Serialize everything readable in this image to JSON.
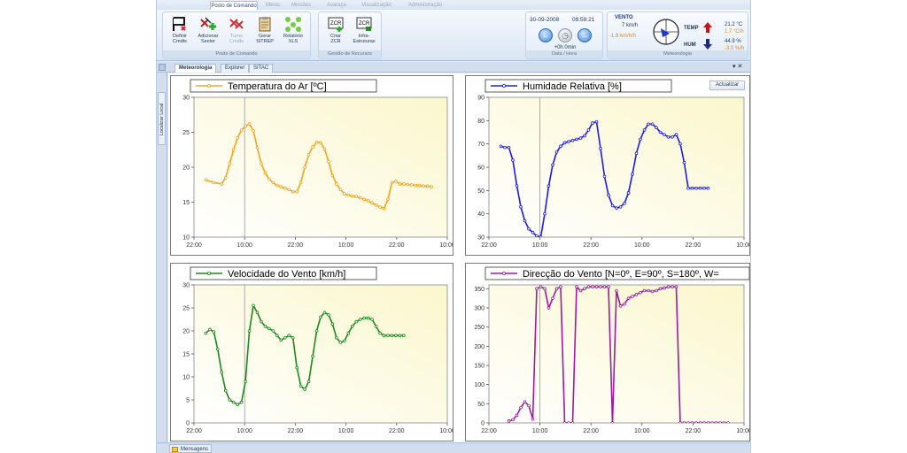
{
  "ribbon": {
    "tabs": [
      "Posto de Comando",
      "Meios",
      "Missões",
      "Avaraça",
      "Visualização",
      "Administração"
    ],
    "groups": {
      "posto": {
        "label": "Posto de Comando",
        "buttons": [
          {
            "label": "Definir\nCmdts",
            "icon": "flag-define-icon"
          },
          {
            "label": "Adicionar\nSector",
            "icon": "add-sector-icon"
          },
          {
            "label": "Turno\nCmdts",
            "icon": "shift-commanders-icon",
            "disabled": true
          },
          {
            "label": "Gerar\nSITREP",
            "icon": "clipboard-report-icon"
          },
          {
            "label": "Relatório\nXLS",
            "icon": "network-report-icon"
          }
        ]
      },
      "gestao": {
        "label": "Gestão de Recursos",
        "buttons": [
          {
            "label": "Criar\nZCR",
            "icon": "zcr-create-icon"
          },
          {
            "label": "Infra-\nEstruturas",
            "icon": "zcr-infrastructure-icon"
          }
        ]
      },
      "datahora": {
        "label": "Data / Hora",
        "date": "30-09-2008",
        "time": "09:59:21",
        "offset": "+0h 0min"
      },
      "meteo": {
        "label": "Meteorologia",
        "wind_title": "VENTO",
        "wind_speed": "7 km/h",
        "wind_trend": "-1.8 km/h/h",
        "temp_label": "TEMP",
        "temp_value": "21.2 °C",
        "temp_trend": "1.7 °C/h",
        "hum_label": "HUM",
        "hum_value": "44.9 %",
        "hum_trend": "-3.0 %/h"
      }
    }
  },
  "doc_tabs": [
    "Meteorologia",
    "Explorer",
    "SITAC"
  ],
  "side_tab": "Localizar Local",
  "status_tab": "Mensagens",
  "actualizar_label": "Actualizar",
  "panels": {
    "temp": {
      "title": "Temperatura do Ar [ºC]"
    },
    "hum": {
      "title": "Humidade Relativa [%]"
    },
    "wind": {
      "title": "Velocidade do Vento [km/h]"
    },
    "dir": {
      "title": "Direcção do Vento [N=0º, E=90º, S=180º, W="
    }
  },
  "chart_data": [
    {
      "type": "line",
      "title": "Temperatura do Ar [ºC]",
      "color": "#f5a31a",
      "x_ticks": [
        "22:00",
        "10:00",
        "22:00",
        "10:00",
        "22:00",
        "10:00"
      ],
      "ylim": [
        10,
        30
      ],
      "y_ticks": [
        10,
        15,
        20,
        25,
        30
      ],
      "grid": false,
      "x": [
        3,
        5,
        7,
        8,
        9,
        10,
        11,
        12,
        13,
        14,
        15,
        16,
        17,
        18,
        19,
        20,
        21,
        22,
        23,
        24,
        25,
        26,
        27,
        28,
        29,
        30,
        31,
        32,
        33,
        34,
        35,
        36,
        37,
        38,
        39,
        40,
        41,
        42,
        43,
        44,
        45,
        46,
        47,
        48,
        49,
        50,
        51,
        52,
        53,
        54,
        55,
        56,
        57,
        58,
        59,
        60
      ],
      "values": [
        18.2,
        17.8,
        17.6,
        18.5,
        20.5,
        22.5,
        24.2,
        25.3,
        25.9,
        26.2,
        25.2,
        22.8,
        20.5,
        19.2,
        18.3,
        17.8,
        17.4,
        17.2,
        17.0,
        16.8,
        16.5,
        16.5,
        17.8,
        20.0,
        21.8,
        22.9,
        23.6,
        23.5,
        22.6,
        20.8,
        18.8,
        17.6,
        16.8,
        16.2,
        16.0,
        15.9,
        15.8,
        15.6,
        15.4,
        15.2,
        14.9,
        14.6,
        14.3,
        14.1,
        15.4,
        17.8,
        18.0,
        17.6,
        17.6,
        17.5,
        17.5,
        17.4,
        17.4,
        17.3,
        17.3,
        17.2
      ]
    },
    {
      "type": "line",
      "title": "Humidade Relativa [%]",
      "color": "#1a1af5",
      "x_ticks": [
        "22:00",
        "10:00",
        "22:00",
        "10:00",
        "22:00",
        "10:00"
      ],
      "ylim": [
        30,
        90
      ],
      "y_ticks": [
        30,
        40,
        50,
        60,
        70,
        80,
        90
      ],
      "grid": false,
      "x": [
        3,
        4,
        5,
        6,
        7,
        8,
        9,
        10,
        11,
        12,
        13,
        14,
        15,
        16,
        17,
        18,
        19,
        20,
        21,
        22,
        23,
        24,
        25,
        26,
        27,
        28,
        29,
        30,
        31,
        32,
        33,
        34,
        35,
        36,
        37,
        38,
        39,
        40,
        41,
        42,
        43,
        44,
        45,
        46,
        47,
        48,
        49,
        50,
        51,
        52,
        53,
        54,
        55
      ],
      "values": [
        69,
        68.5,
        68.5,
        63,
        52,
        43,
        37,
        33.5,
        32,
        30.5,
        30,
        40,
        52,
        61,
        66.5,
        69,
        70.5,
        71,
        71.5,
        72,
        72.5,
        73.5,
        76,
        79,
        79.5,
        68,
        56,
        48,
        43.5,
        42.5,
        43,
        44.5,
        49,
        57,
        66,
        72,
        76,
        78.5,
        78.5,
        77,
        75,
        74,
        73,
        73,
        74,
        70,
        62,
        51,
        51,
        51,
        51,
        51,
        51
      ]
    },
    {
      "type": "line",
      "title": "Velocidade do Vento [km/h]",
      "color": "#1a8a1a",
      "x_ticks": [
        "22:00",
        "10:00",
        "22:00",
        "10:00",
        "22:00",
        "10:00"
      ],
      "ylim": [
        0,
        30
      ],
      "y_ticks": [
        0,
        5,
        10,
        15,
        20,
        25,
        30
      ],
      "grid": false,
      "x": [
        3,
        4,
        5,
        6,
        7,
        8,
        9,
        10,
        11,
        12,
        13,
        14,
        15,
        16,
        17,
        18,
        19,
        20,
        21,
        22,
        23,
        24,
        25,
        26,
        27,
        28,
        29,
        30,
        31,
        32,
        33,
        34,
        35,
        36,
        37,
        38,
        39,
        40,
        41,
        42,
        43,
        44,
        45,
        46,
        47,
        48,
        49,
        50,
        51,
        52,
        53
      ],
      "values": [
        19.5,
        20.3,
        19.8,
        16,
        11,
        7,
        5,
        4.5,
        4,
        4.5,
        9,
        20,
        25.5,
        24,
        22,
        21,
        20.5,
        20,
        19,
        18,
        18.5,
        19,
        18.5,
        12,
        8,
        7.3,
        9,
        14.5,
        20,
        23,
        24,
        23.5,
        21.5,
        18.5,
        17.5,
        17.8,
        19.5,
        21,
        22,
        22.5,
        22.8,
        22.8,
        22.5,
        21,
        19.5,
        19,
        19,
        19,
        19,
        19,
        19
      ]
    },
    {
      "type": "line",
      "title": "Direcção do Vento [N=0º, E=90º, S=180º, W=",
      "color": "#a01aa0",
      "x_ticks": [
        "22:00",
        "10:00",
        "22:00",
        "10:00",
        "22:00",
        "10:00"
      ],
      "ylim": [
        0,
        360
      ],
      "y_ticks": [
        0,
        50,
        100,
        150,
        200,
        250,
        300,
        350
      ],
      "grid": false,
      "x": [
        5,
        6,
        7,
        8,
        9,
        10,
        11,
        12,
        13,
        14,
        15,
        16,
        17,
        18,
        19,
        20,
        21,
        22,
        23,
        24,
        25,
        26,
        27,
        28,
        29,
        30,
        31,
        32,
        33,
        34,
        35,
        36,
        37,
        38,
        39,
        40,
        41,
        42,
        43,
        44,
        45,
        46,
        47,
        48,
        49,
        50,
        51,
        52,
        53,
        54,
        55,
        56,
        57,
        58,
        59,
        60
      ],
      "values": [
        5,
        8,
        20,
        40,
        55,
        45,
        10,
        350,
        355,
        350,
        300,
        325,
        350,
        355,
        0,
        0,
        0,
        355,
        345,
        350,
        355,
        355,
        355,
        355,
        355,
        355,
        0,
        345,
        305,
        310,
        325,
        330,
        335,
        340,
        345,
        345,
        343,
        345,
        350,
        352,
        355,
        355,
        355,
        0,
        0,
        0,
        0,
        0,
        0,
        0,
        0,
        0,
        0,
        0,
        0,
        0
      ]
    }
  ]
}
